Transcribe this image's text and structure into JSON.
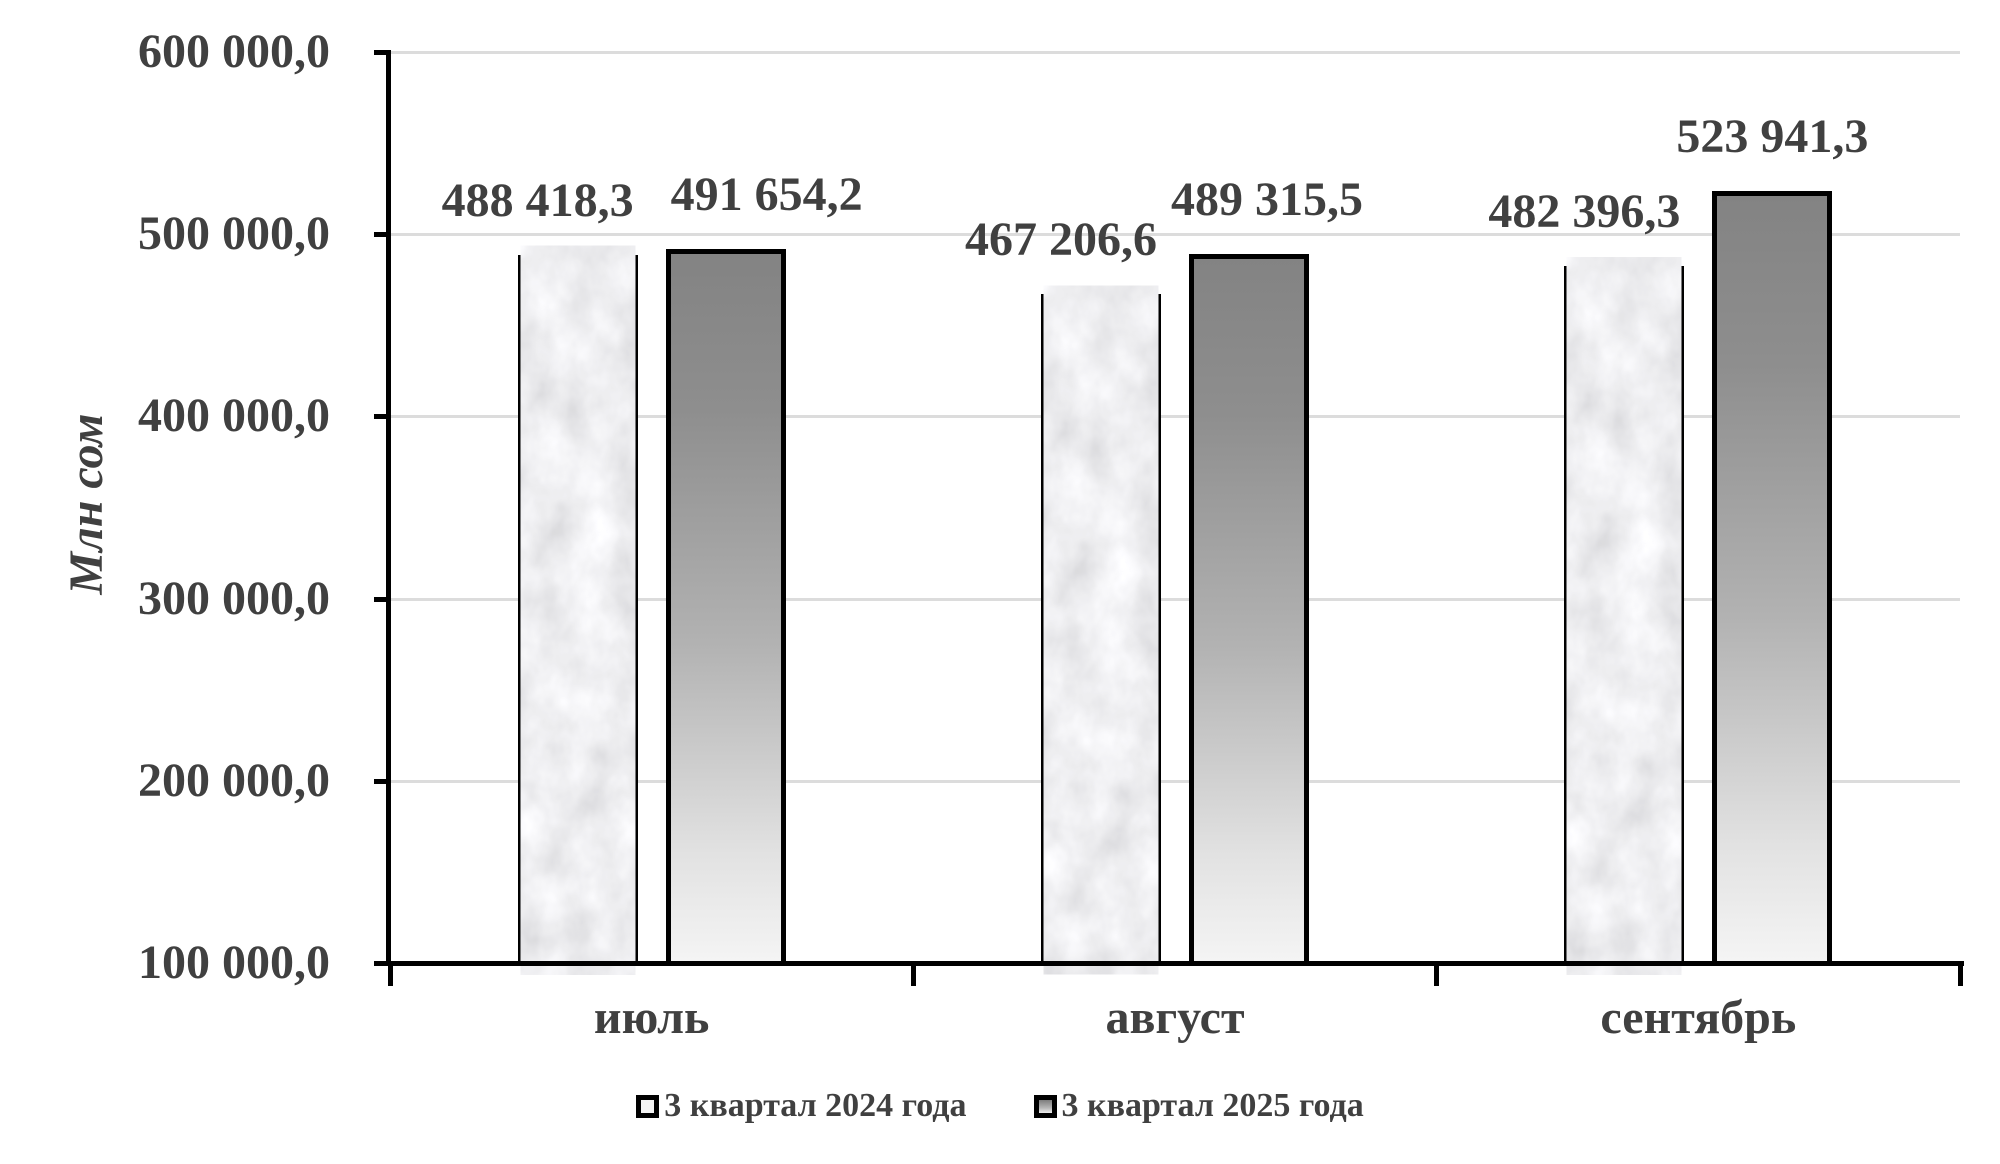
{
  "colors": {
    "text": "#404040",
    "axis": "#000000",
    "gridline": "#dcdcdc",
    "bar_border": "#000000",
    "series1_fill_base": "#ececee",
    "series1_vein": "#a8a8a8",
    "series2_gradient_top": "#838383",
    "series2_gradient_bottom": "#f4f4f4"
  },
  "chart_data": {
    "type": "bar",
    "title": "",
    "xlabel": "",
    "ylabel": "Млн сом",
    "categories": [
      "июль",
      "август",
      "сентябрь"
    ],
    "series": [
      {
        "name": "3 квартал 2024 года",
        "style": "marble-texture",
        "values": [
          488418.3,
          467206.6,
          482396.3
        ],
        "value_labels": [
          "488 418,3",
          "467 206,6",
          "482 396,3"
        ]
      },
      {
        "name": "3 квартал 2025 года",
        "style": "gray-gradient",
        "values": [
          491654.2,
          489315.5,
          523941.3
        ],
        "value_labels": [
          "491 654,2",
          "489 315,5",
          "523 941,3"
        ]
      }
    ],
    "ylim": [
      100000,
      600000
    ],
    "ytick_step": 100000,
    "ytick_labels": [
      "100 000,0",
      "200 000,0",
      "300 000,0",
      "400 000,0",
      "500 000,0",
      "600 000,0"
    ],
    "grid": true,
    "legend_position": "bottom"
  }
}
